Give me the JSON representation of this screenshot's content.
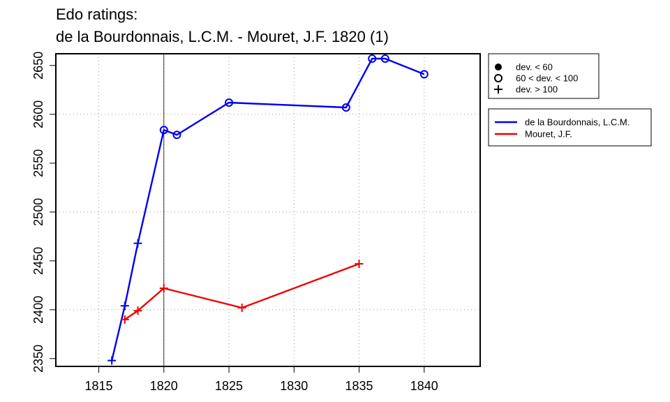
{
  "chart_data": {
    "type": "line",
    "title": "Edo ratings:",
    "subtitle": "de la Bourdonnais, L.C.M. - Mouret, J.F. 1820 (1)",
    "xlabel": "",
    "ylabel": "",
    "xlim": [
      1811.7,
      1844.3
    ],
    "ylim": [
      2342,
      2662
    ],
    "x_ticks": [
      1815,
      1820,
      1825,
      1830,
      1835,
      1840
    ],
    "y_ticks": [
      2350,
      2400,
      2450,
      2500,
      2550,
      2600,
      2650
    ],
    "x_grid": [
      1815,
      1820,
      1825,
      1830,
      1835,
      1840
    ],
    "y_grid": [
      2400,
      2500,
      2600
    ],
    "reference_line_x": 1820,
    "series": [
      {
        "name": "de la Bourdonnais, L.C.M.",
        "color": "#0000ee",
        "points": [
          {
            "x": 1816,
            "y": 2348,
            "marker": "plus"
          },
          {
            "x": 1817,
            "y": 2404,
            "marker": "plus"
          },
          {
            "x": 1818,
            "y": 2468,
            "marker": "plus"
          },
          {
            "x": 1820,
            "y": 2584,
            "marker": "circle"
          },
          {
            "x": 1821,
            "y": 2579,
            "marker": "circle"
          },
          {
            "x": 1825,
            "y": 2612,
            "marker": "circle"
          },
          {
            "x": 1834,
            "y": 2607,
            "marker": "circle"
          },
          {
            "x": 1836,
            "y": 2657,
            "marker": "circle"
          },
          {
            "x": 1837,
            "y": 2657,
            "marker": "circle"
          },
          {
            "x": 1840,
            "y": 2641,
            "marker": "circle"
          }
        ]
      },
      {
        "name": "Mouret, J.F.",
        "color": "#ee0000",
        "points": [
          {
            "x": 1817,
            "y": 2390,
            "marker": "plus"
          },
          {
            "x": 1818,
            "y": 2399,
            "marker": "plus"
          },
          {
            "x": 1820,
            "y": 2422,
            "marker": "plus"
          },
          {
            "x": 1826,
            "y": 2402,
            "marker": "plus"
          },
          {
            "x": 1835,
            "y": 2447,
            "marker": "plus"
          }
        ]
      }
    ],
    "legend_markers": [
      {
        "label": "dev. < 60",
        "marker": "dot"
      },
      {
        "label": "60 < dev. < 100",
        "marker": "circle"
      },
      {
        "label": "dev. > 100",
        "marker": "plus"
      }
    ],
    "legend_placement": "right"
  }
}
